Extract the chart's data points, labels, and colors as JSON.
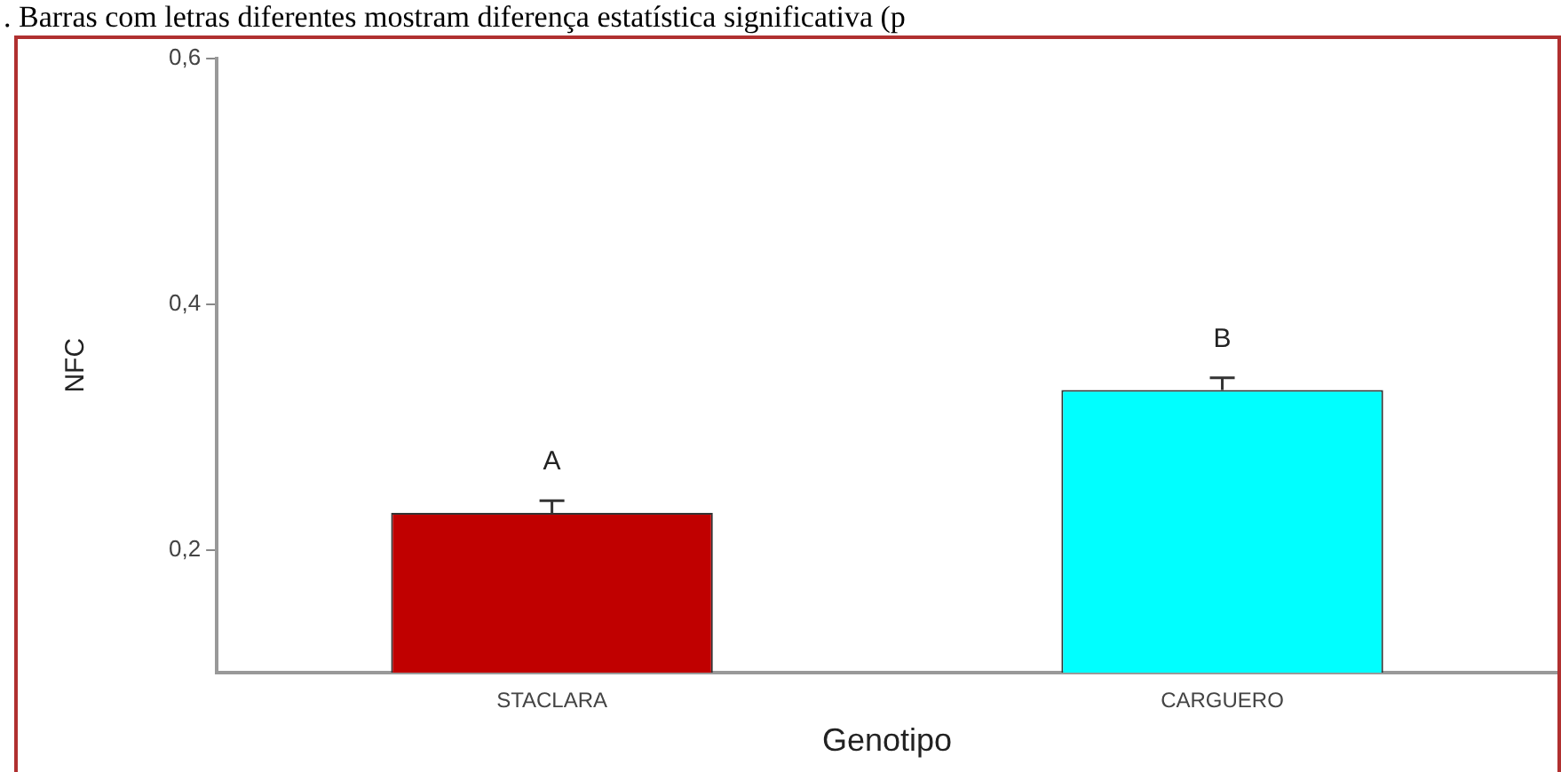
{
  "chart_data": {
    "type": "bar",
    "xlabel": "Genotipo",
    "ylabel": "NFC",
    "categories": [
      "STACLARA",
      "CARGUERO"
    ],
    "values": [
      0.23,
      0.33
    ],
    "errors": [
      0.01,
      0.01
    ],
    "colors": [
      "#c00000",
      "#00ffff"
    ],
    "ylim": [
      0.1,
      0.6
    ],
    "yticks": [
      {
        "value": 0.2,
        "label": "0,2"
      },
      {
        "value": 0.4,
        "label": "0,4"
      },
      {
        "value": 0.6,
        "label": "0,6"
      }
    ],
    "grid": false,
    "legend": false,
    "annotations": [
      ". Barras com letras diferentes mostram diferença estatística significativa (p",
      {
        "text": "A",
        "x": "STACLARA",
        "y": 0.24
      },
      {
        "text": "B",
        "x": "CARGUERO",
        "y": 0.34
      }
    ]
  }
}
